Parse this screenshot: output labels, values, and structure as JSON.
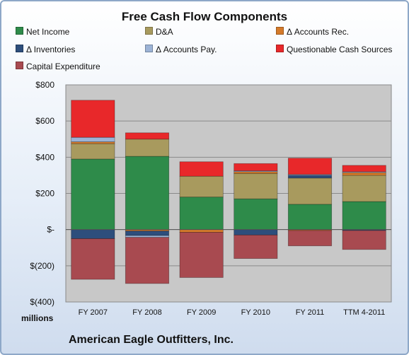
{
  "chart_data": {
    "type": "bar",
    "stacked": true,
    "title": "Free Cash Flow Components",
    "ylabel": "millions",
    "ylim": [
      -400,
      800
    ],
    "yticks": [
      800,
      600,
      400,
      200,
      0,
      -200,
      -400
    ],
    "ytick_labels": [
      "$800",
      "$600",
      "$400",
      "$200",
      "$-",
      "$(200)",
      "$(400)"
    ],
    "categories": [
      "FY 2007",
      "FY 2008",
      "FY 2009",
      "FY 2010",
      "FY 2011",
      "TTM 4-2011"
    ],
    "series": [
      {
        "name": "Net Income",
        "color": "#2e8b4a",
        "values": [
          390,
          405,
          180,
          170,
          140,
          155
        ]
      },
      {
        "name": "D&A",
        "color": "#a89a5e",
        "values": [
          85,
          95,
          115,
          140,
          145,
          145
        ]
      },
      {
        "name": "Δ Accounts Rec.",
        "color": "#d47a2a",
        "values": [
          10,
          -8,
          -15,
          10,
          -5,
          15
        ]
      },
      {
        "name": "Δ Inventories",
        "color": "#2d4e7c",
        "values": [
          -50,
          -25,
          0,
          -30,
          15,
          -5
        ]
      },
      {
        "name": "Δ Accounts Pay.",
        "color": "#9cb3d6",
        "values": [
          25,
          -10,
          0,
          5,
          5,
          5
        ]
      },
      {
        "name": "Questionable Cash Sources",
        "color": "#e8282a",
        "values": [
          205,
          35,
          80,
          40,
          90,
          35
        ]
      },
      {
        "name": "Capital Expenditure",
        "color": "#a84a50",
        "values": [
          -225,
          -255,
          -250,
          -130,
          -85,
          -105
        ]
      }
    ],
    "annotation": "American Eagle Outfitters, Inc.",
    "legend_position": "top",
    "grid": true
  }
}
